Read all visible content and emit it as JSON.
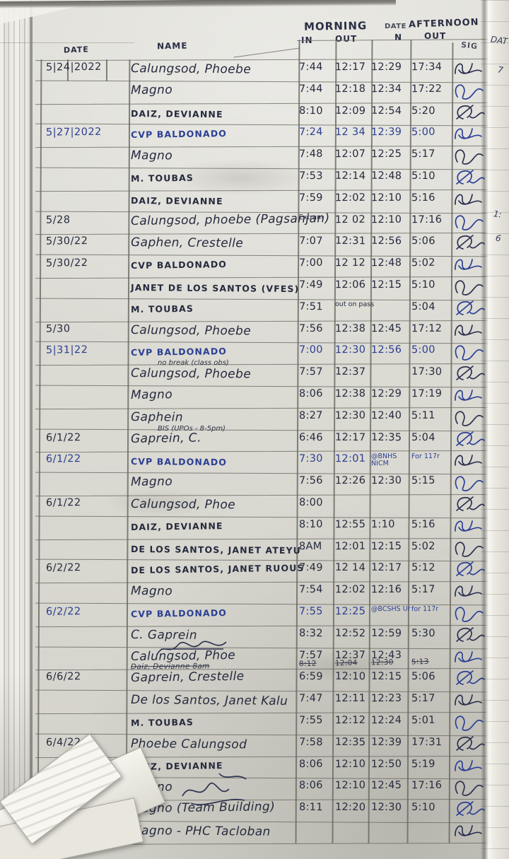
{
  "page_title": "Handwritten attendance logbook page",
  "header": {
    "morning": "MORNING",
    "date_small": "DATE",
    "afternoon": "AFTERNOON",
    "in_morning": "IN",
    "out_morning": "OUT",
    "in_afternoon": "N",
    "out_afternoon": "OUT",
    "sig_col": "SIG",
    "date_col": "DATE",
    "name_col": "NAME"
  },
  "edge_fragments": [
    "DAT",
    "7",
    "1:",
    "6"
  ],
  "rows": [
    {
      "date": "5|24|2022",
      "name": "Calungsod, Phoebe",
      "times": [
        "7:44",
        "12:17",
        "12:29",
        "17:34"
      ]
    },
    {
      "name": "Magno",
      "times": [
        "7:44",
        "12:18",
        "12:34",
        "17:22"
      ]
    },
    {
      "name": "DAIZ, DEVIANNE",
      "times": [
        "8:10",
        "12:09",
        "12:54",
        "5:20"
      ]
    },
    {
      "date": "5|27|2022",
      "name": "CVP BALDONADO",
      "blue": true,
      "times": [
        "7:24",
        "12 34",
        "12:39",
        "5:00"
      ]
    },
    {
      "name": "Magno",
      "times": [
        "7:48",
        "12:07",
        "12:25",
        "5:17"
      ]
    },
    {
      "name": "M. TOUBAS",
      "times": [
        "7:53",
        "12:14",
        "12:48",
        "5:10"
      ]
    },
    {
      "name": "DAIZ, DEVIANNE",
      "times": [
        "7:59",
        "12:02",
        "12:10",
        "5:16"
      ]
    },
    {
      "date": "5/28",
      "name": "Calungsod, phoebe (Pagsanjan)",
      "times": [
        "Extram",
        "12 02",
        "12:10",
        "17:16"
      ]
    },
    {
      "date": "5/30/22",
      "name": "Gaphen, Crestelle",
      "times": [
        "7:07",
        "12:31",
        "12:56",
        "5:06"
      ]
    },
    {
      "date": "5/30/22",
      "name": "CVP BALDONADO",
      "times": [
        "7:00",
        "12 12",
        "12:48",
        "5:02"
      ]
    },
    {
      "name": "JANET DE LOS SANTOS (VFES)",
      "times": [
        "7:49",
        "12:06",
        "12:15",
        "5:10"
      ]
    },
    {
      "name": "M. TOUBAS",
      "times": [
        "7:51",
        "out on pass",
        "",
        "5:04"
      ]
    },
    {
      "date": "5/30",
      "name": "Calungsod, Phoebe",
      "times": [
        "7:56",
        "12:38",
        "12:45",
        "17:12"
      ]
    },
    {
      "date": "5|31|22",
      "name": "CVP BALDONADO",
      "blue": true,
      "times": [
        "7:00",
        "12:30",
        "12:56",
        "5:00"
      ]
    },
    {
      "name": "Calungsod, Phoebe",
      "note": "no break (class obs)",
      "times": [
        "7:57",
        "12:37",
        "",
        "17:30"
      ]
    },
    {
      "name": "Magno",
      "times": [
        "8:06",
        "12:38",
        "12:29",
        "17:19"
      ]
    },
    {
      "name": "Gaphein",
      "times": [
        "8:27",
        "12:30",
        "12:40",
        "5:11"
      ]
    },
    {
      "date": "6/1/22",
      "name": "Gaprein, C.",
      "note": "BIS (UPOs - 8-5pm)",
      "times": [
        "6:46",
        "12:17",
        "12:35",
        "5:04"
      ]
    },
    {
      "date": "6/1/22",
      "name": "CVP BALDONADO",
      "blue": true,
      "times": [
        "7:30",
        "12:01",
        "@BNHS NICM",
        "For 117r"
      ]
    },
    {
      "name": "Magno",
      "times": [
        "7:56",
        "12:26",
        "12:30",
        "5:15"
      ]
    },
    {
      "date": "6/1/22",
      "name": "Calungsod, Phoe",
      "times": [
        "8:00",
        "",
        "",
        ""
      ]
    },
    {
      "name": "DAIZ, DEVIANNE",
      "times": [
        "8:10",
        "12:55",
        "1:10",
        "5:16"
      ]
    },
    {
      "name": "DE LOS SANTOS, JANET ATEYU",
      "times": [
        "8AM",
        "12:01",
        "12:15",
        "5:02"
      ]
    },
    {
      "date": "6/2/22",
      "name": "DE LOS SANTOS, JANET RUOUS",
      "times": [
        "7:49",
        "12 14",
        "12:17",
        "5:12"
      ]
    },
    {
      "name": "Magno",
      "times": [
        "7:54",
        "12:02",
        "12:16",
        "5:17"
      ]
    },
    {
      "date": "6/2/22",
      "name": "CVP BALDONADO",
      "blue": true,
      "times": [
        "7:55",
        "12:25",
        "@BCSHS Ur",
        "for 117r"
      ]
    },
    {
      "name": "C. Gaprein",
      "times": [
        "8:32",
        "12:52",
        "12:59",
        "5:30"
      ]
    },
    {
      "name": "Calungsod, Phoe",
      "times": [
        "7:57",
        "12:37",
        "12:43",
        ""
      ]
    },
    {
      "struck": true,
      "name": "Daiz, Devianne 8am",
      "times": [
        "8:12",
        "12:04",
        "12:30",
        "5:13"
      ]
    },
    {
      "date": "6/6/22",
      "name": "Gaprein, Crestelle",
      "times": [
        "6:59",
        "12:10",
        "12:15",
        "5:06"
      ]
    },
    {
      "name": "De los Santos, Janet Kalu",
      "times": [
        "7:47",
        "12:11",
        "12:23",
        "5:17"
      ]
    },
    {
      "name": "M. TOUBAS",
      "times": [
        "7:55",
        "12:12",
        "12:24",
        "5:01"
      ]
    },
    {
      "date": "6/4/22",
      "name": "Phoebe Calungsod",
      "times": [
        "7:58",
        "12:35",
        "12:39",
        "17:31"
      ]
    },
    {
      "name": "DAIZ, DEVIANNE",
      "times": [
        "8:06",
        "12:10",
        "12:50",
        "5:19"
      ]
    },
    {
      "name": "Magno",
      "times": [
        "8:06",
        "12:10",
        "12:45",
        "17:16"
      ]
    },
    {
      "name": "Magno (Team Building)",
      "times": [
        "8:11",
        "12:20",
        "12:30",
        "5:10"
      ]
    },
    {
      "name": "Magno - PHC Tacloban",
      "times": [
        "",
        "",
        "",
        ""
      ]
    }
  ],
  "ink_colors": {
    "dark": "#262a3e",
    "blue": "#2b3f93"
  },
  "paper_color": "#deddd6"
}
